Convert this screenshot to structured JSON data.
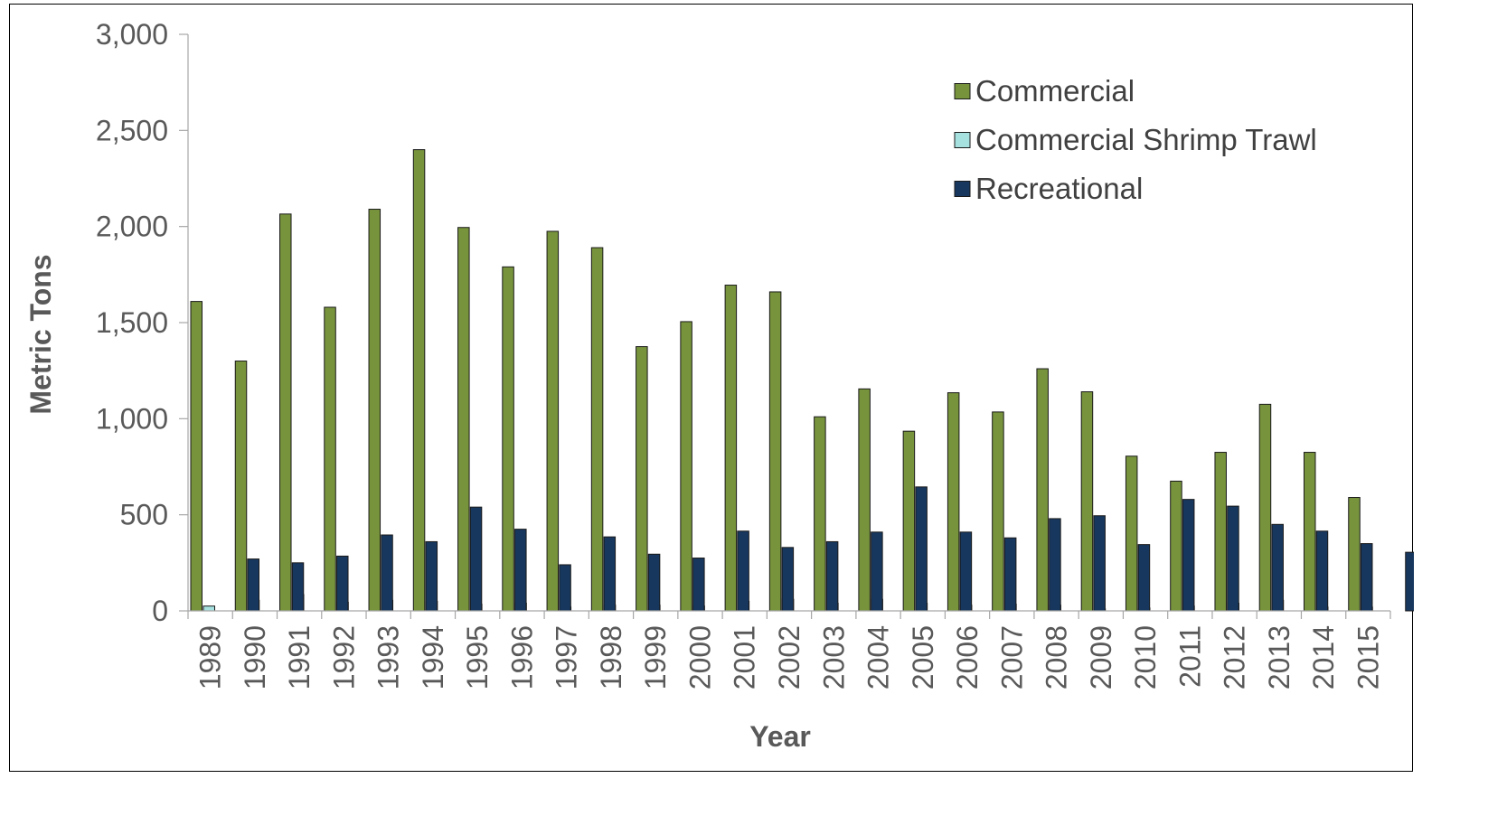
{
  "chart_data": {
    "type": "bar",
    "title": "",
    "xlabel": "Year",
    "ylabel": "Metric Tons",
    "ylim": [
      0,
      3000
    ],
    "yticks": [
      0,
      500,
      1000,
      1500,
      2000,
      2500,
      3000
    ],
    "ytick_labels": [
      "0",
      "500",
      "1,000",
      "1,500",
      "2,000",
      "2,500",
      "3,000"
    ],
    "grid": false,
    "legend_position": "top-right",
    "categories": [
      "1989",
      "1990",
      "1991",
      "1992",
      "1993",
      "1994",
      "1995",
      "1996",
      "1997",
      "1998",
      "1999",
      "2000",
      "2001",
      "2002",
      "2003",
      "2004",
      "2005",
      "2006",
      "2007",
      "2008",
      "2009",
      "2010",
      "2011",
      "2012",
      "2013",
      "2014",
      "2015"
    ],
    "series": [
      {
        "name": "Commercial",
        "color": "#77933C",
        "values": [
          1610,
          1300,
          2065,
          1580,
          2090,
          2400,
          1995,
          1790,
          1975,
          1890,
          1375,
          1505,
          1695,
          1660,
          1010,
          1155,
          935,
          1135,
          1035,
          1260,
          1140,
          805,
          675,
          825,
          1075,
          825,
          590
        ]
      },
      {
        "name": "Commercial Shrimp Trawl",
        "color": "#A6E0DF",
        "values": [
          25,
          55,
          85,
          45,
          55,
          50,
          35,
          40,
          20,
          30,
          30,
          25,
          50,
          60,
          40,
          60,
          40,
          30,
          35,
          30,
          10,
          15,
          25,
          40,
          55,
          20,
          20
        ]
      },
      {
        "name": "Recreational",
        "color": "#17375E",
        "values": [
          270,
          250,
          285,
          395,
          360,
          540,
          425,
          240,
          385,
          295,
          275,
          415,
          330,
          360,
          410,
          645,
          410,
          380,
          480,
          495,
          345,
          580,
          545,
          450,
          415,
          350,
          305
        ]
      }
    ]
  }
}
